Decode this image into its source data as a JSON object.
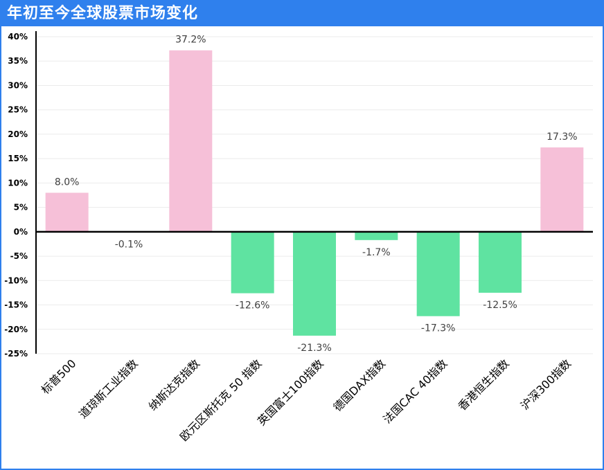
{
  "chart_data": {
    "type": "bar",
    "title": "年初至今全球股票市场变化",
    "categories": [
      "标普500",
      "道琼斯工业指数",
      "纳斯达克指数",
      "欧元区斯托克 50 指数",
      "英国富士100指数",
      "德国DAX指数",
      "法国CAC 40指数",
      "香港恒生指数",
      "沪深300指数"
    ],
    "values": [
      8.0,
      -0.1,
      37.2,
      -12.6,
      -21.3,
      -1.7,
      -17.3,
      -12.5,
      17.3
    ],
    "data_labels": [
      "8.0%",
      "-0.1%",
      "37.2%",
      "-12.6%",
      "-21.3%",
      "-1.7%",
      "-17.3%",
      "-12.5%",
      "17.3%"
    ],
    "ylim": [
      -25,
      40
    ],
    "yticks": [
      40,
      35,
      30,
      25,
      20,
      15,
      10,
      5,
      0,
      -5,
      -10,
      -15,
      -20,
      -25
    ],
    "ytick_labels": [
      "40%",
      "35%",
      "30%",
      "25%",
      "20%",
      "15%",
      "10%",
      "5%",
      "0%",
      "-5%",
      "-10%",
      "-15%",
      "-20%",
      "-25%"
    ],
    "xlabel": "",
    "ylabel": "",
    "grid": true,
    "legend": "none",
    "colors": {
      "positive": "#F6C0D8",
      "negative": "#5FE3A1",
      "title_bar": "#2F80ED",
      "title_text": "#FFFFFF",
      "gridline": "#EBEBEB",
      "axis": "#000000",
      "data_label": "#404040"
    }
  }
}
